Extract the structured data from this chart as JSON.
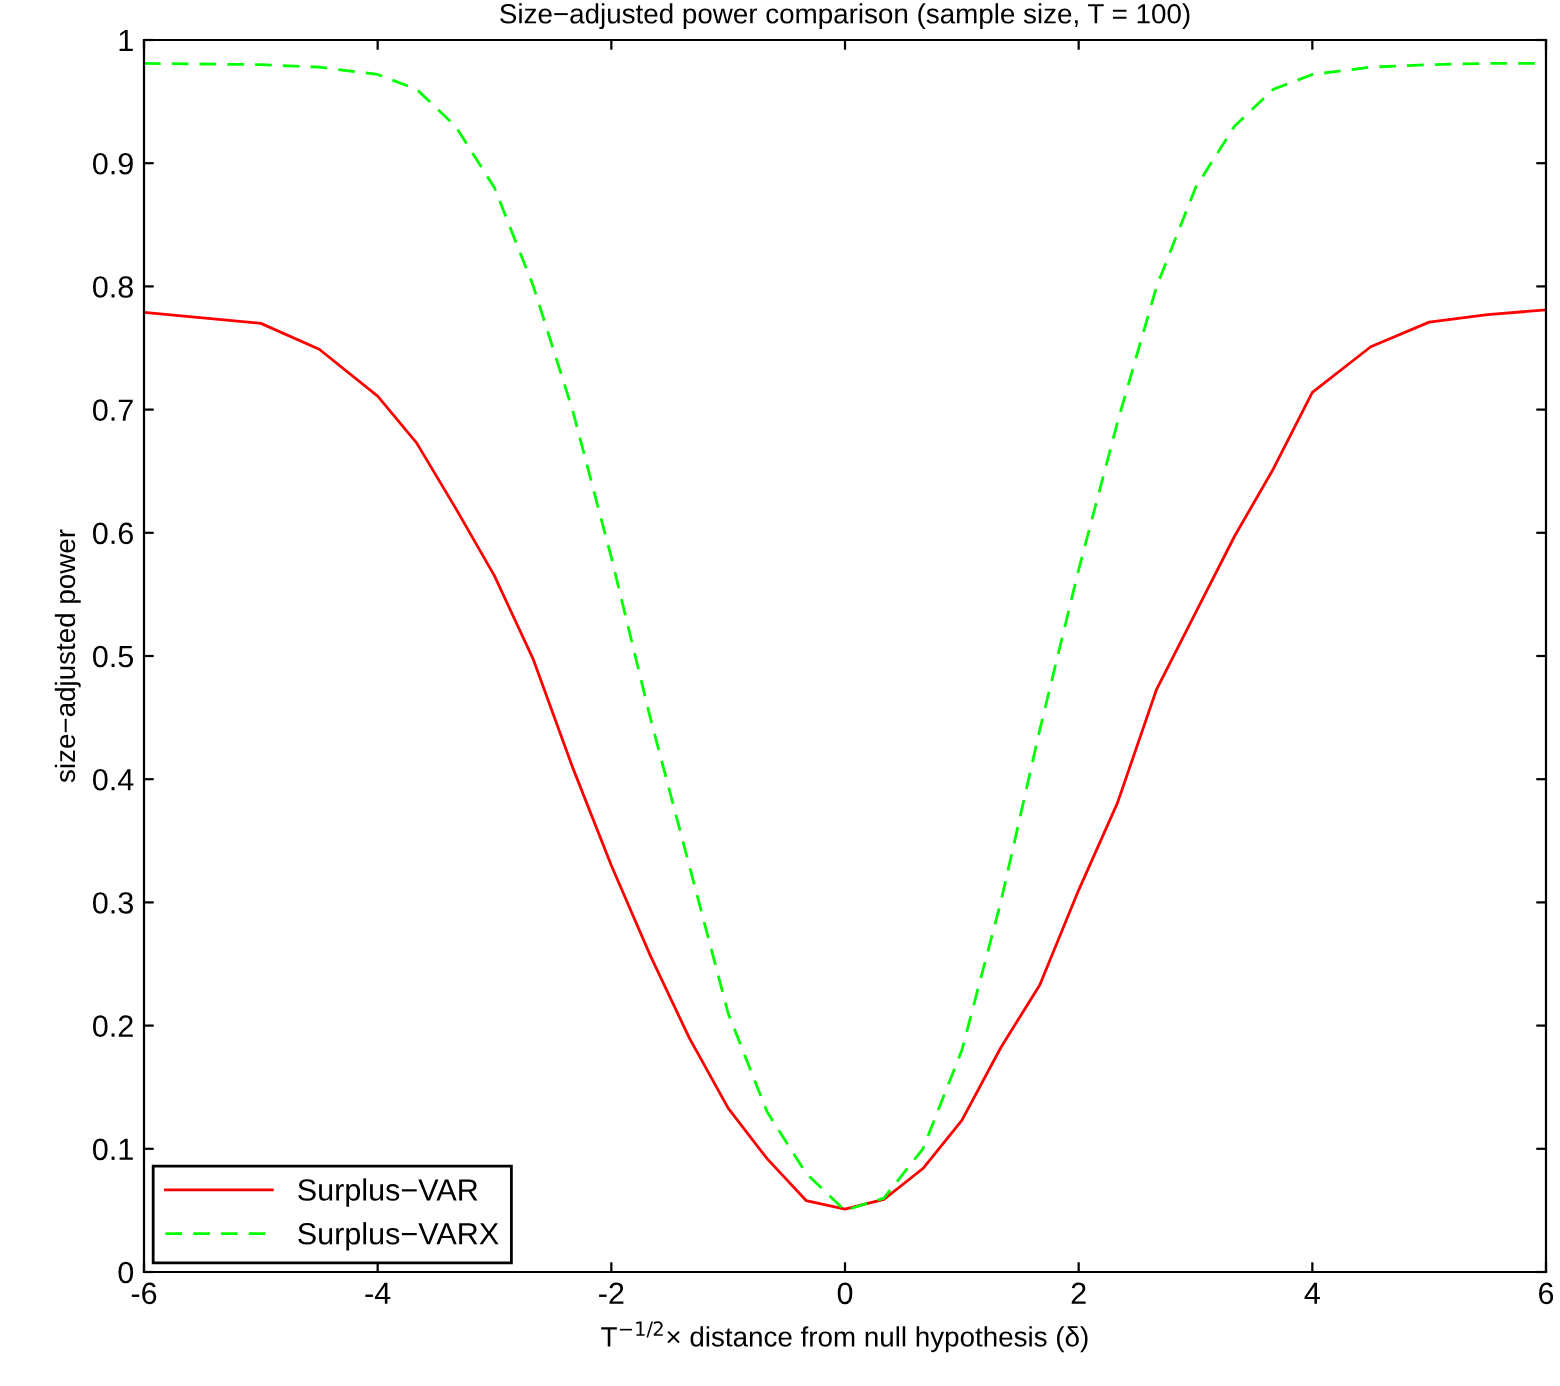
{
  "chart_data": {
    "type": "line",
    "title": "Size−adjusted power comparison (sample size, T = 100)",
    "xlabel": "T$^{−1/2}$× distance from null hypothesis (δ)",
    "ylabel": "size−adjusted power",
    "x": [
      -6,
      -5,
      -4.5,
      -4,
      -3.667,
      -3.333,
      -3,
      -2.667,
      -2.333,
      -2,
      -1.667,
      -1.333,
      -1,
      -0.667,
      -0.333,
      0,
      0.333,
      0.667,
      1,
      1.333,
      1.667,
      2,
      2.333,
      2.667,
      3,
      3.333,
      3.667,
      4,
      4.5,
      5,
      5.5,
      6
    ],
    "series": [
      {
        "name": "Surplus−VAR",
        "color": "#ff0000",
        "line_style": "solid",
        "values": [
          0.779,
          0.77,
          0.749,
          0.711,
          0.673,
          0.62,
          0.565,
          0.497,
          0.41,
          0.33,
          0.257,
          0.19,
          0.133,
          0.092,
          0.058,
          0.051,
          0.059,
          0.084,
          0.123,
          0.182,
          0.233,
          0.31,
          0.381,
          0.473,
          0.535,
          0.597,
          0.652,
          0.714,
          0.751,
          0.771,
          0.777,
          0.781
        ]
      },
      {
        "name": "Surplus−VARX",
        "color": "#00ff00",
        "line_style": "dashed",
        "values": [
          0.981,
          0.98,
          0.978,
          0.972,
          0.96,
          0.93,
          0.88,
          0.8,
          0.7,
          0.58,
          0.45,
          0.33,
          0.21,
          0.13,
          0.08,
          0.05,
          0.06,
          0.1,
          0.18,
          0.3,
          0.44,
          0.57,
          0.69,
          0.8,
          0.88,
          0.93,
          0.96,
          0.972,
          0.978,
          0.98,
          0.981,
          0.981
        ]
      }
    ],
    "xlim": [
      -6,
      6
    ],
    "ylim": [
      0,
      1
    ],
    "xticks": [
      -6,
      -4,
      -2,
      0,
      2,
      4,
      6
    ],
    "yticks": [
      0,
      0.1,
      0.2,
      0.3,
      0.4,
      0.5,
      0.6,
      0.7,
      0.8,
      0.9,
      1
    ],
    "grid": false,
    "legend": "bottom left",
    "marker": "none"
  }
}
